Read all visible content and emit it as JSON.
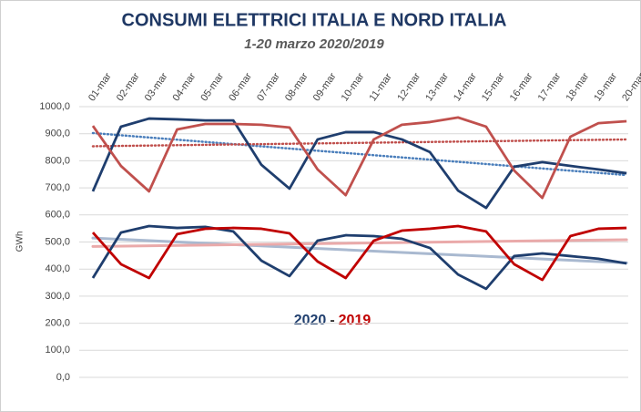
{
  "chart_data": {
    "type": "line",
    "title": "CONSUMI ELETTRICI ITALIA E NORD ITALIA",
    "subtitle": "1-20 marzo 2020/2019",
    "y_label": "GWh",
    "annotation": {
      "first": "2020",
      "separator": "-",
      "second": "2019",
      "first_color": "#1f3e6e",
      "second_color": "#c00000"
    },
    "categories": [
      "01-mar",
      "02-mar",
      "03-mar",
      "04-mar",
      "05-mar",
      "06-mar",
      "07-mar",
      "08-mar",
      "09-mar",
      "10-mar",
      "11-mar",
      "12-mar",
      "13-mar",
      "14-mar",
      "15-mar",
      "16-mar",
      "17-mar",
      "18-mar",
      "19-mar",
      "20-mar"
    ],
    "series": [
      {
        "color": "#1f3e6e",
        "trend_color": "#4a7ebb",
        "trend_style": "dotted",
        "values": [
          687,
          926,
          956,
          953,
          949,
          949,
          785,
          697,
          879,
          906,
          906,
          879,
          832,
          690,
          626,
          778,
          795,
          781,
          768,
          754
        ]
      },
      {
        "color": "#c0504d",
        "trend_color": "#c0504d",
        "trend_style": "dotted",
        "values": [
          929,
          781,
          687,
          916,
          936,
          936,
          933,
          923,
          768,
          673,
          879,
          933,
          943,
          960,
          926,
          764,
          663,
          889,
          939,
          946
        ]
      },
      {
        "color": "#1f3e6e",
        "trend_color": "#a9b9d0",
        "trend_style": "solid",
        "values": [
          367,
          535,
          559,
          552,
          556,
          539,
          431,
          374,
          505,
          525,
          522,
          512,
          478,
          380,
          327,
          448,
          458,
          448,
          438,
          421
        ]
      },
      {
        "color": "#c00000",
        "trend_color": "#eaaaaa",
        "trend_style": "solid",
        "values": [
          535,
          418,
          367,
          529,
          549,
          552,
          549,
          532,
          428,
          367,
          505,
          542,
          549,
          559,
          539,
          418,
          360,
          522,
          549,
          552
        ]
      }
    ],
    "ylim": [
      0,
      1000
    ],
    "yticks": [
      {
        "value": 0,
        "label": "0,0"
      },
      {
        "value": 100,
        "label": "100,0"
      },
      {
        "value": 200,
        "label": "200,0"
      },
      {
        "value": 300,
        "label": "300,0"
      },
      {
        "value": 400,
        "label": "400,0"
      },
      {
        "value": 500,
        "label": "500,0"
      },
      {
        "value": 600,
        "label": "600,0"
      },
      {
        "value": 700,
        "label": "700,0"
      },
      {
        "value": 800,
        "label": "800,0"
      },
      {
        "value": 900,
        "label": "900,0"
      },
      {
        "value": 1000,
        "label": "1000,0"
      }
    ],
    "grid": true
  }
}
